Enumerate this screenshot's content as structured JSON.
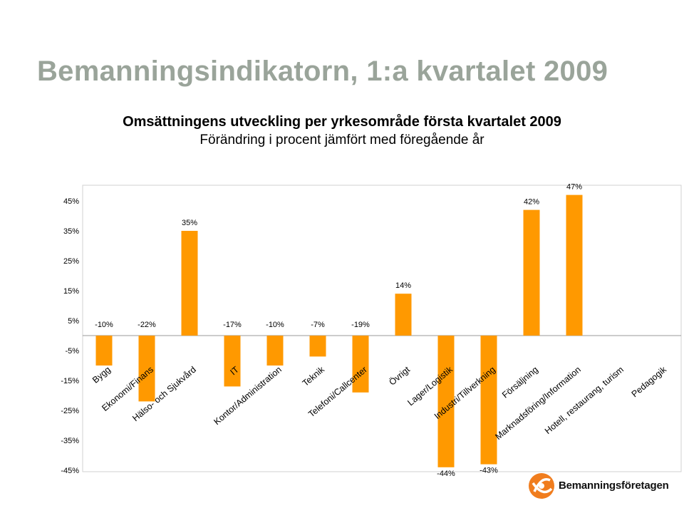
{
  "slide_title": "Bemanningsindikatorn, 1:a kvartalet 2009",
  "brand": {
    "name": "Bemanningsföretagen",
    "accent": "#f07d1e"
  },
  "chart_data": {
    "type": "bar",
    "title": "Omsättningens utveckling per yrkesområde första kvartalet 2009",
    "subtitle": "Förändring i procent jämfört med föregående år",
    "categories": [
      "Bygg",
      "Ekonomi/Finans",
      "Hälso- och Sjukvård",
      "IT",
      "Kontor/Administration",
      "Teknik",
      "Telefoni/Callcenter",
      "Övrigt",
      "Lager/Logistik",
      "Industri/Tillverkning",
      "Försäljning",
      "Marknadsföring/Information",
      "Hotell, restaurang, turism",
      "Pedagogik"
    ],
    "values": [
      -10,
      -22,
      35,
      -17,
      -10,
      -7,
      -19,
      14,
      -44,
      -43,
      42,
      47,
      null,
      null
    ],
    "data_labels": [
      "-10%",
      "-22%",
      "35%",
      "-17%",
      "-10%",
      "-7%",
      "-19%",
      "14%",
      "-44%",
      "-43%",
      "42%",
      "47%",
      "",
      ""
    ],
    "y_ticks": [
      45,
      35,
      25,
      15,
      5,
      -5,
      -15,
      -25,
      -35,
      -45
    ],
    "y_tick_labels": [
      "45%",
      "35%",
      "25%",
      "15%",
      "5%",
      "-5%",
      "-15%",
      "-25%",
      "-35%",
      "-45%"
    ],
    "ylim": [
      -45,
      50
    ],
    "bar_color": "#ff9900",
    "grid": false,
    "legend": "none"
  }
}
